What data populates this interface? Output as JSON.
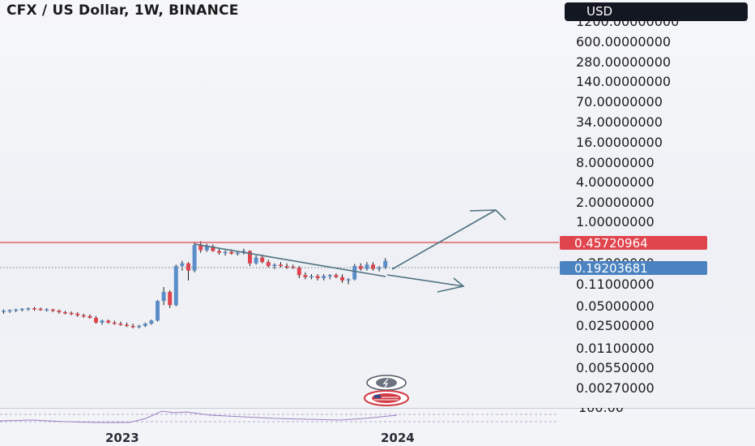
{
  "title": "CFX / US Dollar, 1W, BINANCE",
  "currency": "USD",
  "colors": {
    "up": "#5b8ec9",
    "down": "#e0454e",
    "resistance": "#e0454e",
    "trendline": "#4f7180",
    "current_tag": "#4a83c0",
    "level_tag": "#e0454e",
    "rsi": "#9b7fc0"
  },
  "chart_data": {
    "type": "candlestick",
    "title": "CFX / US Dollar, 1W, BINANCE",
    "y_scale": "log",
    "y_ticks": [
      "1200.00000000",
      "600.00000000",
      "280.00000000",
      "140.00000000",
      "70.00000000",
      "34.00000000",
      "16.00000000",
      "8.00000000",
      "4.00000000",
      "2.00000000",
      "1.00000000",
      "0.25000000",
      "0.11000000",
      "0.05000000",
      "0.02500000",
      "0.01100000",
      "0.00550000",
      "0.00270000"
    ],
    "x_ticks": [
      "2023",
      "2024"
    ],
    "price_tags": [
      {
        "name": "horizontal-level",
        "value": "0.45720964"
      },
      {
        "name": "last-price",
        "value": "0.19203681"
      }
    ],
    "sub_pane_tick": "100.00",
    "candles": [
      [
        0.04,
        0.043,
        0.037,
        0.041
      ],
      [
        0.041,
        0.043,
        0.038,
        0.042
      ],
      [
        0.042,
        0.044,
        0.039,
        0.043
      ],
      [
        0.043,
        0.045,
        0.04,
        0.044
      ],
      [
        0.044,
        0.046,
        0.041,
        0.045
      ],
      [
        0.045,
        0.047,
        0.041,
        0.044
      ],
      [
        0.044,
        0.046,
        0.041,
        0.043
      ],
      [
        0.043,
        0.045,
        0.04,
        0.043
      ],
      [
        0.043,
        0.044,
        0.039,
        0.041
      ],
      [
        0.041,
        0.043,
        0.037,
        0.039
      ],
      [
        0.039,
        0.041,
        0.036,
        0.038
      ],
      [
        0.038,
        0.04,
        0.035,
        0.037
      ],
      [
        0.037,
        0.039,
        0.033,
        0.035
      ],
      [
        0.035,
        0.037,
        0.032,
        0.034
      ],
      [
        0.034,
        0.036,
        0.031,
        0.032
      ],
      [
        0.032,
        0.034,
        0.026,
        0.027
      ],
      [
        0.027,
        0.03,
        0.025,
        0.029
      ],
      [
        0.029,
        0.03,
        0.026,
        0.027
      ],
      [
        0.027,
        0.029,
        0.025,
        0.026
      ],
      [
        0.026,
        0.028,
        0.024,
        0.025
      ],
      [
        0.025,
        0.027,
        0.023,
        0.024
      ],
      [
        0.024,
        0.026,
        0.022,
        0.023
      ],
      [
        0.023,
        0.025,
        0.022,
        0.024
      ],
      [
        0.024,
        0.027,
        0.023,
        0.026
      ],
      [
        0.026,
        0.03,
        0.025,
        0.029
      ],
      [
        0.029,
        0.06,
        0.028,
        0.058
      ],
      [
        0.058,
        0.095,
        0.05,
        0.08
      ],
      [
        0.08,
        0.085,
        0.045,
        0.05
      ],
      [
        0.05,
        0.21,
        0.048,
        0.2
      ],
      [
        0.2,
        0.24,
        0.17,
        0.22
      ],
      [
        0.22,
        0.23,
        0.12,
        0.17
      ],
      [
        0.17,
        0.47,
        0.16,
        0.42
      ],
      [
        0.42,
        0.48,
        0.32,
        0.35
      ],
      [
        0.35,
        0.44,
        0.33,
        0.4
      ],
      [
        0.4,
        0.43,
        0.33,
        0.34
      ],
      [
        0.34,
        0.37,
        0.3,
        0.32
      ],
      [
        0.32,
        0.35,
        0.29,
        0.33
      ],
      [
        0.33,
        0.36,
        0.3,
        0.31
      ],
      [
        0.31,
        0.34,
        0.29,
        0.32
      ],
      [
        0.32,
        0.37,
        0.3,
        0.34
      ],
      [
        0.34,
        0.35,
        0.2,
        0.22
      ],
      [
        0.22,
        0.29,
        0.21,
        0.27
      ],
      [
        0.27,
        0.3,
        0.22,
        0.23
      ],
      [
        0.23,
        0.25,
        0.19,
        0.2
      ],
      [
        0.2,
        0.22,
        0.18,
        0.21
      ],
      [
        0.21,
        0.23,
        0.19,
        0.2
      ],
      [
        0.2,
        0.22,
        0.18,
        0.195
      ],
      [
        0.195,
        0.21,
        0.18,
        0.19
      ],
      [
        0.19,
        0.2,
        0.13,
        0.145
      ],
      [
        0.145,
        0.16,
        0.125,
        0.135
      ],
      [
        0.135,
        0.15,
        0.125,
        0.14
      ],
      [
        0.14,
        0.15,
        0.12,
        0.13
      ],
      [
        0.13,
        0.15,
        0.12,
        0.14
      ],
      [
        0.14,
        0.15,
        0.125,
        0.145
      ],
      [
        0.145,
        0.155,
        0.13,
        0.135
      ],
      [
        0.135,
        0.15,
        0.11,
        0.12
      ],
      [
        0.12,
        0.13,
        0.105,
        0.125
      ],
      [
        0.125,
        0.215,
        0.12,
        0.2
      ],
      [
        0.2,
        0.22,
        0.17,
        0.18
      ],
      [
        0.18,
        0.23,
        0.17,
        0.21
      ],
      [
        0.21,
        0.23,
        0.17,
        0.18
      ],
      [
        0.18,
        0.2,
        0.165,
        0.19
      ],
      [
        0.19,
        0.265,
        0.18,
        0.24
      ]
    ]
  }
}
